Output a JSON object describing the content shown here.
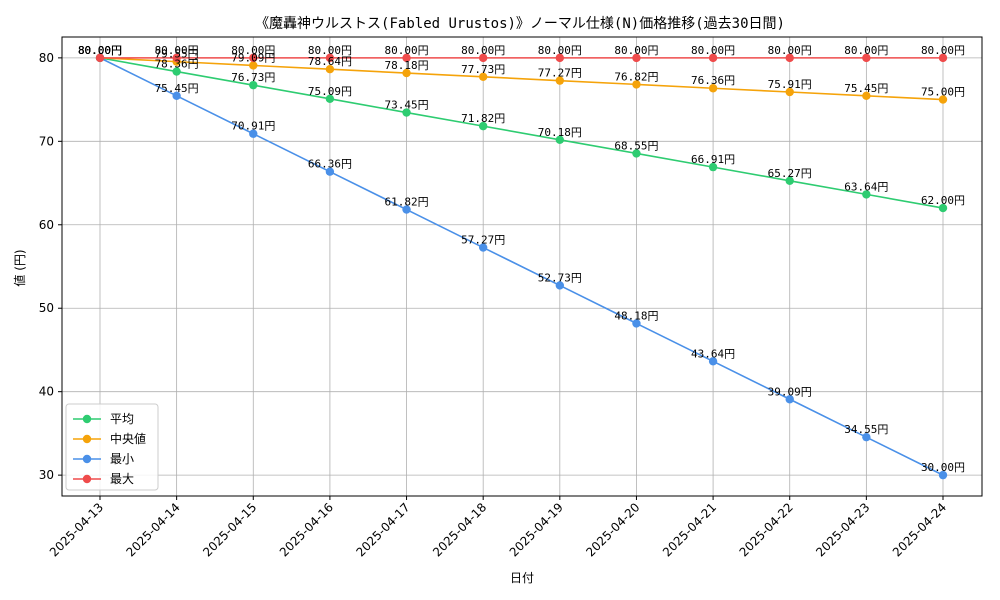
{
  "chart_data": {
    "type": "line",
    "title": "《魔轟神ウルストス(Fabled Urustos)》ノーマル仕様(N)価格推移(過去30日間)",
    "xlabel": "日付",
    "ylabel": "値 (円)",
    "value_suffix": "円",
    "x": [
      "2025-04-13",
      "2025-04-14",
      "2025-04-15",
      "2025-04-16",
      "2025-04-17",
      "2025-04-18",
      "2025-04-19",
      "2025-04-20",
      "2025-04-21",
      "2025-04-22",
      "2025-04-23",
      "2025-04-24"
    ],
    "yticks": [
      30,
      40,
      50,
      60,
      70,
      80
    ],
    "ylim": [
      27.5,
      82.5
    ],
    "grid": true,
    "legend_position": "lower-left",
    "series": [
      {
        "name": "平均",
        "color": "#2ecc71",
        "values": [
          80.0,
          78.36,
          76.73,
          75.09,
          73.45,
          71.82,
          70.18,
          68.55,
          66.91,
          65.27,
          63.64,
          62.0
        ]
      },
      {
        "name": "中央値",
        "color": "#f5a30a",
        "values": [
          80.0,
          79.55,
          79.09,
          78.64,
          78.18,
          77.73,
          77.27,
          76.82,
          76.36,
          75.91,
          75.45,
          75.0
        ]
      },
      {
        "name": "最小",
        "color": "#4a90e8",
        "values": [
          80.0,
          75.45,
          70.91,
          66.36,
          61.82,
          57.27,
          52.73,
          48.18,
          43.64,
          39.09,
          34.55,
          30.0
        ]
      },
      {
        "name": "最大",
        "color": "#ef4b4b",
        "values": [
          80.0,
          80.0,
          80.0,
          80.0,
          80.0,
          80.0,
          80.0,
          80.0,
          80.0,
          80.0,
          80.0,
          80.0
        ]
      }
    ]
  }
}
